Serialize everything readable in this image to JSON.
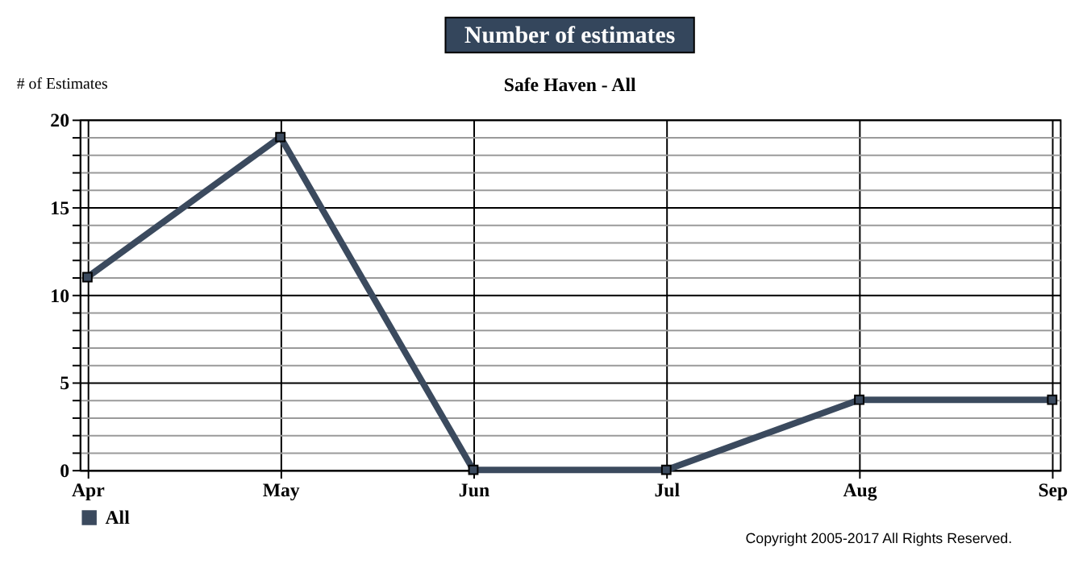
{
  "chart_data": {
    "type": "line",
    "title": "Number of estimates",
    "subtitle": "Safe Haven - All",
    "ylabel": "# of Estimates",
    "categories": [
      "Apr",
      "May",
      "Jun",
      "Jul",
      "Aug",
      "Sep"
    ],
    "series": [
      {
        "name": "All",
        "color": "#3b4a5e",
        "values": [
          11,
          19,
          0,
          0,
          4,
          4
        ]
      }
    ],
    "ylim": [
      0,
      20
    ],
    "yticks": [
      0,
      {
        "value": 1,
        "label": null
      },
      {
        "value": 2,
        "label": null
      },
      {
        "value": 3,
        "label": null
      },
      {
        "value": 4,
        "label": null
      },
      5,
      {
        "value": 6,
        "label": null
      },
      {
        "value": 7,
        "label": null
      },
      {
        "value": 8,
        "label": null
      },
      {
        "value": 9,
        "label": null
      },
      10,
      {
        "value": 11,
        "label": null
      },
      {
        "value": 12,
        "label": null
      },
      {
        "value": 13,
        "label": null
      },
      {
        "value": 14,
        "label": null
      },
      15,
      {
        "value": 16,
        "label": null
      },
      {
        "value": 17,
        "label": null
      },
      {
        "value": 18,
        "label": null
      },
      {
        "value": 19,
        "label": null
      },
      20
    ],
    "grid": true,
    "legend": "bottom",
    "marker": "square",
    "line_style": "solid",
    "annotations": [
      "Copyright 2005-2017 All Rights Reserved."
    ]
  }
}
